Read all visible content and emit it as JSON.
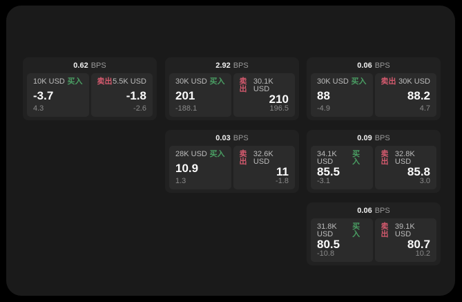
{
  "labels": {
    "bps": "BPS",
    "buy": "买入",
    "sell": "卖出"
  },
  "colors": {
    "background": "#000000",
    "screen": "#1a1a1a",
    "card": "#212121",
    "tile": "#2b2b2b",
    "buy": "#4a9e63",
    "sell": "#d45a6e"
  },
  "cards": [
    {
      "row": 1,
      "col": 1,
      "bps": "0.62",
      "buy": {
        "amount": "10K USD",
        "value": "-3.7",
        "delta": "4.3"
      },
      "sell": {
        "amount": "5.5K USD",
        "value": "-1.8",
        "delta": "-2.6"
      }
    },
    {
      "row": 1,
      "col": 2,
      "bps": "2.92",
      "buy": {
        "amount": "30K USD",
        "value": "201",
        "delta": "-188.1"
      },
      "sell": {
        "amount": "30.1K USD",
        "value": "210",
        "delta": "196.5"
      }
    },
    {
      "row": 1,
      "col": 3,
      "bps": "0.06",
      "buy": {
        "amount": "30K USD",
        "value": "88",
        "delta": "-4.9"
      },
      "sell": {
        "amount": "30K USD",
        "value": "88.2",
        "delta": "4.7"
      }
    },
    {
      "row": 2,
      "col": 2,
      "bps": "0.03",
      "buy": {
        "amount": "28K USD",
        "value": "10.9",
        "delta": "1.3"
      },
      "sell": {
        "amount": "32.6K USD",
        "value": "11",
        "delta": "-1.8"
      }
    },
    {
      "row": 2,
      "col": 3,
      "bps": "0.09",
      "buy": {
        "amount": "34.1K USD",
        "value": "85.5",
        "delta": "-3.1"
      },
      "sell": {
        "amount": "32.8K USD",
        "value": "85.8",
        "delta": "3.0"
      }
    },
    {
      "row": 3,
      "col": 3,
      "bps": "0.06",
      "buy": {
        "amount": "31.8K USD",
        "value": "80.5",
        "delta": "-10.8"
      },
      "sell": {
        "amount": "39.1K USD",
        "value": "80.7",
        "delta": "10.2"
      }
    }
  ]
}
